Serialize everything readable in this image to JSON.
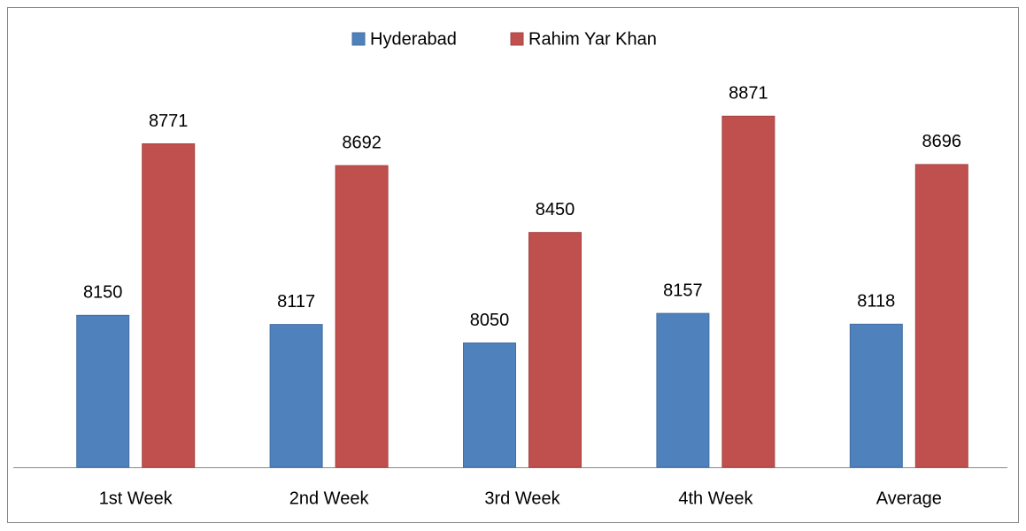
{
  "chart_data": {
    "type": "bar",
    "categories": [
      "1st Week",
      "2nd Week",
      "3rd Week",
      "4th Week",
      "Average"
    ],
    "series": [
      {
        "name": "Hyderabad",
        "color": "#4f81bd",
        "values": [
          8150,
          8117,
          8050,
          8157,
          8118
        ]
      },
      {
        "name": "Rahim Yar Khan",
        "color": "#c0504d",
        "values": [
          8771,
          8692,
          8450,
          8871,
          8696
        ]
      }
    ],
    "ylim": [
      7600,
      9000
    ],
    "legend": "top"
  }
}
